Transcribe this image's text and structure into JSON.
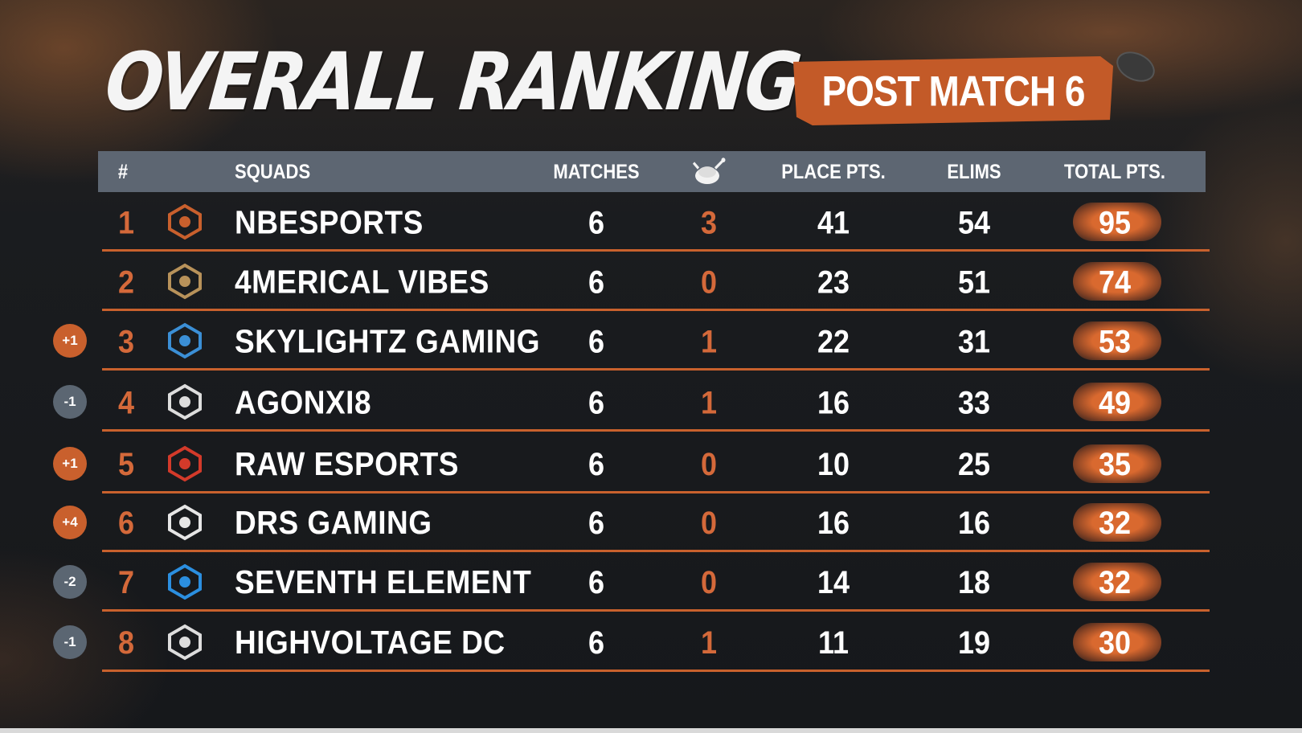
{
  "title": "OVERALL RANKING",
  "subtitle": "POST MATCH 6",
  "columns": {
    "rank": "#",
    "squads": "SQUADS",
    "matches": "MATCHES",
    "wins_icon": "chicken-dinner-icon",
    "place_pts": "PLACE PTS.",
    "elims": "ELIMS",
    "total_pts": "TOTAL PTS."
  },
  "rows": [
    {
      "rank": "1",
      "change": "",
      "logo": "nbesports-logo",
      "squad": "NBESPORTS",
      "matches": "6",
      "wins": "3",
      "place_pts": "41",
      "elims": "54",
      "total": "95"
    },
    {
      "rank": "2",
      "change": "",
      "logo": "4merical-vibes-logo",
      "squad": "4MERICAL VIBES",
      "matches": "6",
      "wins": "0",
      "place_pts": "23",
      "elims": "51",
      "total": "74"
    },
    {
      "rank": "3",
      "change": "+1",
      "logo": "skylightz-logo",
      "squad": "SKYLIGHTZ GAMING",
      "matches": "6",
      "wins": "1",
      "place_pts": "22",
      "elims": "31",
      "total": "53"
    },
    {
      "rank": "4",
      "change": "-1",
      "logo": "agonxi8-logo",
      "squad": "AGONXI8",
      "matches": "6",
      "wins": "1",
      "place_pts": "16",
      "elims": "33",
      "total": "49"
    },
    {
      "rank": "5",
      "change": "+1",
      "logo": "raw-esports-logo",
      "squad": "RAW ESPORTS",
      "matches": "6",
      "wins": "0",
      "place_pts": "10",
      "elims": "25",
      "total": "35"
    },
    {
      "rank": "6",
      "change": "+4",
      "logo": "drs-gaming-logo",
      "squad": "DRS GAMING",
      "matches": "6",
      "wins": "0",
      "place_pts": "16",
      "elims": "16",
      "total": "32"
    },
    {
      "rank": "7",
      "change": "-2",
      "logo": "seventh-element-logo",
      "squad": "SEVENTH ELEMENT",
      "matches": "6",
      "wins": "0",
      "place_pts": "14",
      "elims": "18",
      "total": "32"
    },
    {
      "rank": "8",
      "change": "-1",
      "logo": "highvoltage-dc-logo",
      "squad": "HIGHVOLTAGE DC",
      "matches": "6",
      "wins": "1",
      "place_pts": "11",
      "elims": "19",
      "total": "30"
    }
  ],
  "colors": {
    "accent": "#c8612d",
    "header_bg": "#5d6672",
    "badge_up": "#c9602d",
    "badge_down": "#5b6672"
  }
}
